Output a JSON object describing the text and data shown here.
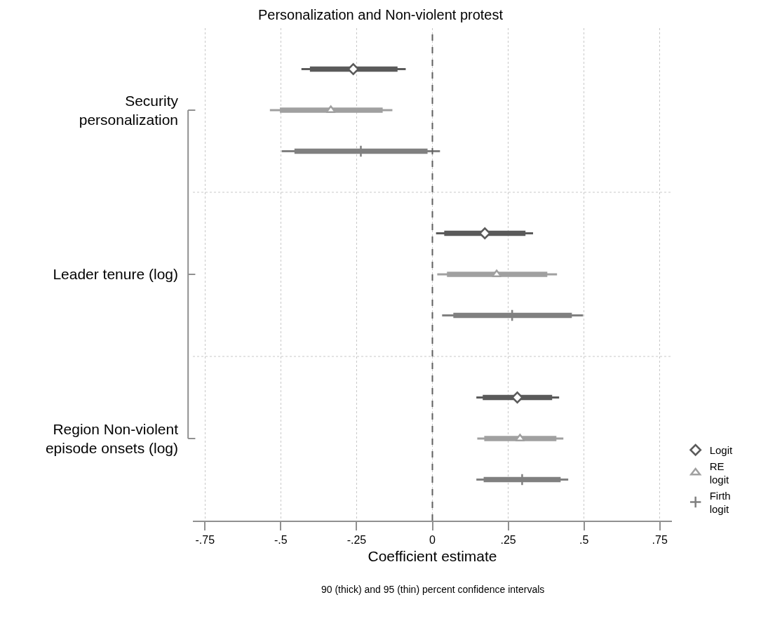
{
  "chart_data": {
    "type": "scatter",
    "orientation": "horizontal",
    "title": "Personalization and Non-violent protest",
    "xlabel": "Coefficient estimate",
    "annotations": [
      "90 (thick) and 95 (thin) percent confidence intervals"
    ],
    "categories": [
      null,
      "Security personalization",
      null,
      null,
      null,
      "Leader tenure (log)",
      null,
      null,
      null,
      "Region Non-violent episode onsets (log)",
      null
    ],
    "xlim": [
      -0.79,
      0.79
    ],
    "xticks": [
      {
        "value": -0.75,
        "label": "-.75"
      },
      {
        "value": -0.5,
        "label": "-.5"
      },
      {
        "value": -0.25,
        "label": "-.25"
      },
      0,
      {
        "value": 0.25,
        "label": ".25"
      },
      {
        "value": 0.5,
        "label": ".5"
      },
      {
        "value": 0.75,
        "label": ".75"
      }
    ],
    "grid": true,
    "legend": "bottom right",
    "ref_lines": [
      {
        "axis": "x",
        "value": 0,
        "line_style": "dashed",
        "color": "#606060"
      }
    ],
    "series": [
      {
        "type": "bar",
        "color": "#5a5a5a",
        "base": [
          -0.404,
          null,
          null,
          null,
          0.039,
          null,
          null,
          null,
          0.166,
          null,
          null
        ],
        "values": [
          0.289,
          null,
          null,
          null,
          0.268,
          null,
          null,
          null,
          0.229,
          null,
          null
        ]
      },
      {
        "type": "bar",
        "color": "#a0a0a0",
        "base": [
          null,
          -0.503,
          null,
          null,
          null,
          0.048,
          null,
          null,
          null,
          0.171,
          null
        ],
        "values": [
          null,
          0.339,
          null,
          null,
          null,
          0.331,
          null,
          null,
          null,
          0.238,
          null
        ]
      },
      {
        "type": "bar",
        "color": "#808080",
        "base": [
          null,
          null,
          -0.455,
          null,
          null,
          null,
          0.069,
          null,
          null,
          null,
          0.169
        ],
        "values": [
          null,
          null,
          0.439,
          null,
          null,
          null,
          0.391,
          null,
          null,
          null,
          0.254
        ]
      },
      {
        "name": "Logit",
        "color": "#5a5a5a",
        "marker": "diamond",
        "values": [
          -0.261,
          null,
          null,
          null,
          0.173,
          null,
          null,
          null,
          0.28,
          null,
          null
        ],
        "errors": [
          [
            -0.432,
            -0.088
          ],
          null,
          null,
          null,
          [
            0.012,
            0.332
          ],
          null,
          null,
          null,
          [
            0.145,
            0.418
          ],
          null,
          null
        ]
      },
      {
        "name": "RE logit",
        "color": "#a0a0a0",
        "marker": "triangle",
        "values": [
          null,
          -0.335,
          null,
          null,
          null,
          0.212,
          null,
          null,
          null,
          0.289,
          null
        ],
        "errors": [
          null,
          [
            -0.536,
            -0.132
          ],
          null,
          null,
          null,
          [
            0.016,
            0.411
          ],
          null,
          null,
          null,
          [
            0.148,
            0.432
          ],
          null
        ]
      },
      {
        "name": "Firth logit",
        "color": "#808080",
        "marker": "cross",
        "values": [
          null,
          null,
          -0.236,
          null,
          null,
          null,
          0.263,
          null,
          null,
          null,
          0.296
        ],
        "errors": [
          null,
          null,
          [
            -0.497,
            0.025
          ],
          null,
          null,
          null,
          [
            0.032,
            0.497
          ],
          null,
          null,
          null,
          [
            0.145,
            0.448
          ]
        ]
      }
    ]
  }
}
